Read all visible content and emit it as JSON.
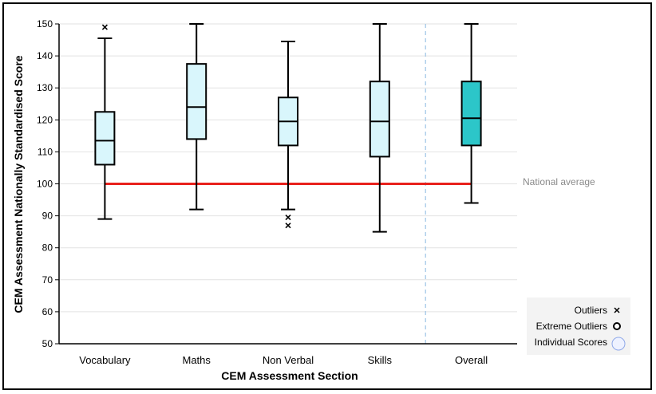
{
  "chart_data": {
    "type": "box",
    "xlabel": "CEM Assessment Section",
    "ylabel": "CEM Assessment Nationally Standardised Score",
    "ylim": [
      50,
      150
    ],
    "yticks": [
      50,
      60,
      70,
      80,
      90,
      100,
      110,
      120,
      130,
      140,
      150
    ],
    "grid": true,
    "categories": [
      "Vocabulary",
      "Maths",
      "Non Verbal",
      "Skills",
      "Overall"
    ],
    "boxes": [
      {
        "category": "Vocabulary",
        "min": 89,
        "q1": 106,
        "median": 113.5,
        "q3": 122.5,
        "max": 145.5,
        "outliers": [
          149
        ],
        "color": "#d9f6fc"
      },
      {
        "category": "Maths",
        "min": 92,
        "q1": 114,
        "median": 124,
        "q3": 137.5,
        "max": 150,
        "outliers": [],
        "color": "#d9f6fc"
      },
      {
        "category": "Non Verbal",
        "min": 92,
        "q1": 112,
        "median": 119.5,
        "q3": 127,
        "max": 144.5,
        "outliers": [
          89.5,
          87
        ],
        "color": "#d9f6fc"
      },
      {
        "category": "Skills",
        "min": 85,
        "q1": 108.5,
        "median": 119.5,
        "q3": 132,
        "max": 150,
        "outliers": [],
        "color": "#d9f6fc"
      },
      {
        "category": "Overall",
        "min": 94,
        "q1": 112,
        "median": 120.5,
        "q3": 132,
        "max": 150,
        "outliers": [],
        "color": "#2cc6c9"
      }
    ],
    "reference_line": {
      "label": "National average",
      "value": 100,
      "color": "#e8211c"
    },
    "separator_after": "Skills",
    "legend": {
      "position": "bottom-right",
      "items": [
        {
          "label": "Outliers",
          "marker": "x"
        },
        {
          "label": "Extreme Outliers",
          "marker": "circle-bold"
        },
        {
          "label": "Individual Scores",
          "marker": "circle-light"
        }
      ]
    }
  }
}
